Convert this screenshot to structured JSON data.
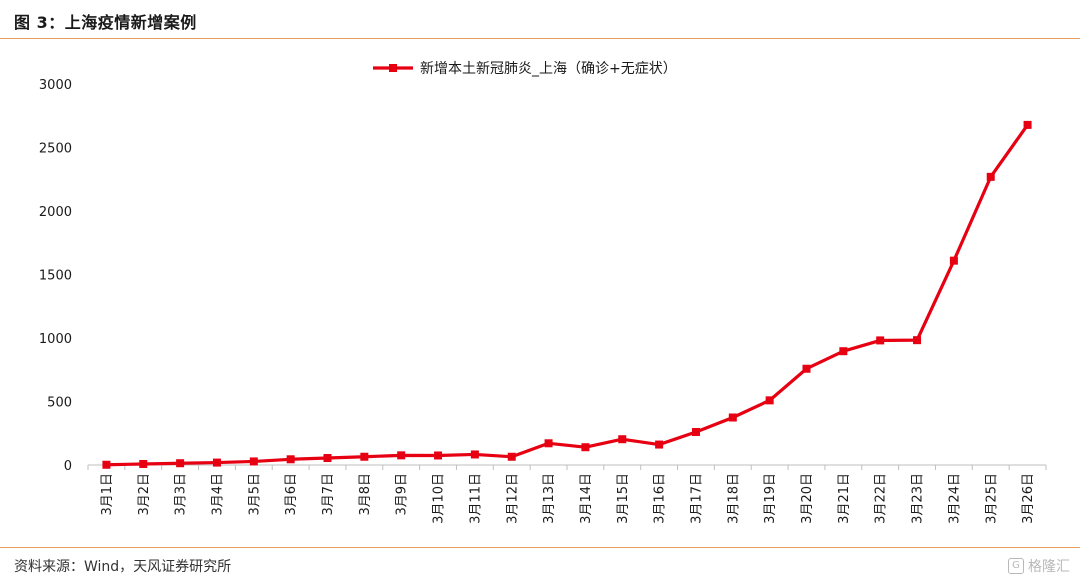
{
  "page": {
    "figure_title": "图 3：上海疫情新增案例",
    "source": "资料来源：Wind，天风证券研究所",
    "watermark": "格隆汇"
  },
  "chart_data": {
    "type": "line",
    "categories": [
      "3月1日",
      "3月2日",
      "3月3日",
      "3月4日",
      "3月5日",
      "3月6日",
      "3月7日",
      "3月8日",
      "3月9日",
      "3月10日",
      "3月11日",
      "3月12日",
      "3月13日",
      "3月14日",
      "3月15日",
      "3月16日",
      "3月17日",
      "3月18日",
      "3月19日",
      "3月20日",
      "3月21日",
      "3月22日",
      "3月23日",
      "3月24日",
      "3月25日",
      "3月26日"
    ],
    "series": [
      {
        "name": "新增本土新冠肺炎_上海（确诊+无症状）",
        "values": [
          2,
          8,
          14,
          19,
          28,
          45,
          55,
          65,
          76,
          75,
          83,
          65,
          171,
          140,
          203,
          161,
          260,
          374,
          509,
          758,
          896,
          981,
          983,
          1609,
          2269,
          2678
        ],
        "color": "#e60012"
      }
    ],
    "yticks": [
      0,
      500,
      1000,
      1500,
      2000,
      2500,
      3000
    ],
    "ylim": [
      0,
      3000
    ],
    "legend_position": "top-center",
    "grid": false
  }
}
